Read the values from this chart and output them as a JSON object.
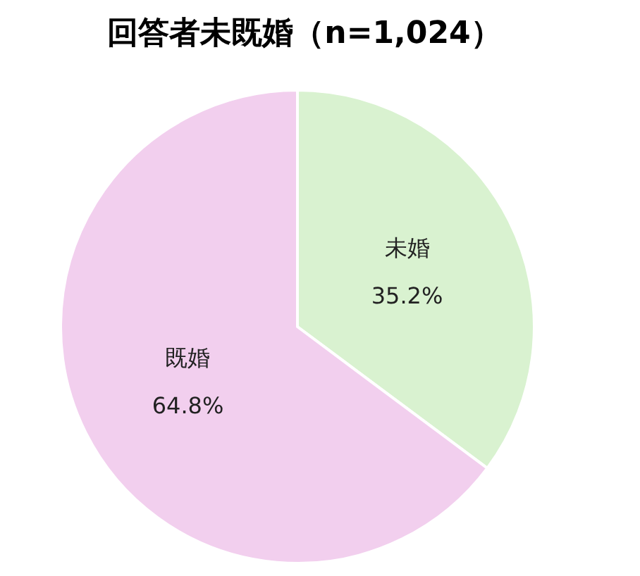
{
  "chart_data": {
    "type": "pie",
    "title": "回答者未既婚（n=1,024）",
    "categories": [
      "未婚",
      "既婚"
    ],
    "values": [
      35.2,
      64.8
    ],
    "value_labels": [
      "35.2%",
      "64.8%"
    ],
    "colors": [
      "#d9f2d0",
      "#f2cfee"
    ],
    "legend": false
  }
}
